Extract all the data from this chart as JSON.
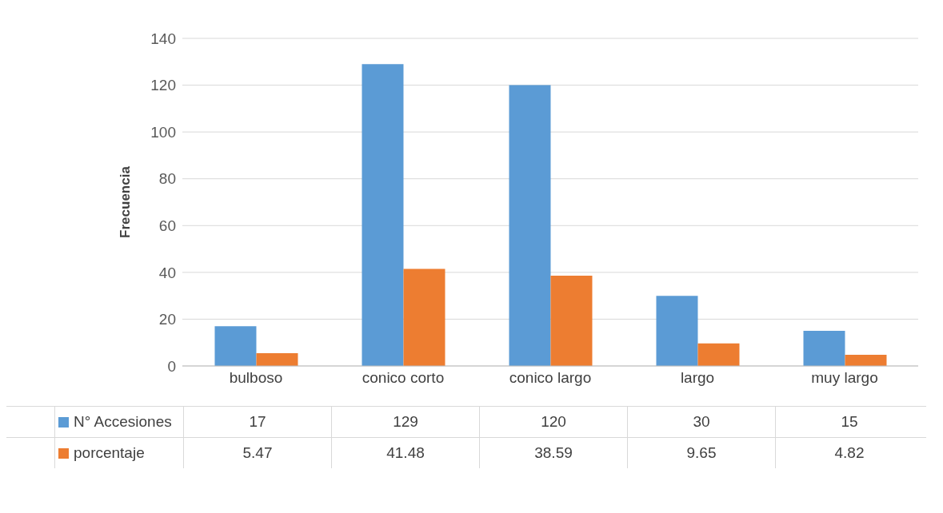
{
  "chart_data": {
    "type": "bar",
    "ylabel": "Frecuencia",
    "categories": [
      "bulboso",
      "conico corto",
      "conico largo",
      "largo",
      "muy largo"
    ],
    "series": [
      {
        "name": "N° Accesiones",
        "color": "#5b9bd5",
        "values": [
          17,
          129,
          120,
          30,
          15
        ]
      },
      {
        "name": "porcentaje",
        "color": "#ed7d31",
        "values": [
          5.47,
          41.48,
          38.59,
          9.65,
          4.82
        ]
      }
    ],
    "ylim": [
      0,
      140
    ],
    "yticks": [
      0,
      20,
      40,
      60,
      80,
      100,
      120,
      140
    ],
    "grid": "y",
    "legend": "bottom",
    "data_labels": true
  }
}
